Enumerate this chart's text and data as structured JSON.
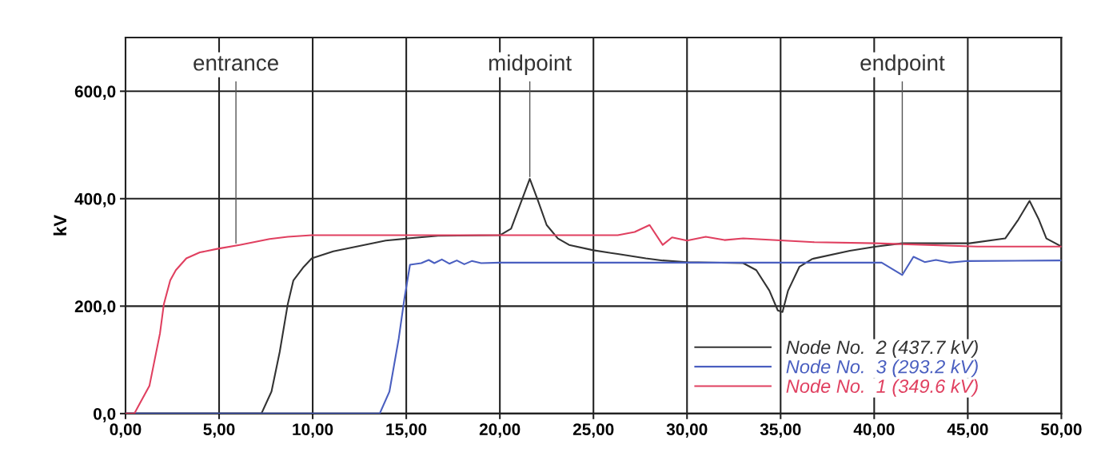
{
  "chart_data": {
    "type": "line",
    "ylabel": "kV",
    "xlim": [
      0,
      50
    ],
    "ylim": [
      0,
      700
    ],
    "xticks": [
      {
        "value": 0,
        "label": "0,00"
      },
      {
        "value": 5,
        "label": "5,00"
      },
      {
        "value": 10,
        "label": "10,00"
      },
      {
        "value": 15,
        "label": "15,00"
      },
      {
        "value": 20,
        "label": "20,00"
      },
      {
        "value": 25,
        "label": "25,00"
      },
      {
        "value": 30,
        "label": "30,00"
      },
      {
        "value": 35,
        "label": "35,00"
      },
      {
        "value": 40,
        "label": "40,00"
      },
      {
        "value": 45,
        "label": "45,00"
      },
      {
        "value": 50,
        "label": "50,00"
      }
    ],
    "yticks": [
      {
        "value": 0,
        "label": "0,0"
      },
      {
        "value": 200,
        "label": "200,0"
      },
      {
        "value": 400,
        "label": "400,0"
      },
      {
        "value": 600,
        "label": "600,0"
      }
    ],
    "grid": true,
    "legend": "bottom right",
    "marker": "none",
    "line_style": "solid",
    "series": [
      {
        "name": "Node No.  2 (437.7 kV)",
        "color": "#333333",
        "x": [
          0,
          7.26,
          7.8,
          8.24,
          8.67,
          8.97,
          9.52,
          9.95,
          11.1,
          12.5,
          13.9,
          15.1,
          16.7,
          20,
          20.6,
          21.2,
          21.6,
          22.0,
          22.5,
          23.1,
          23.7,
          25.0,
          26.3,
          27.8,
          28.7,
          30.0,
          33.0,
          33.7,
          34.4,
          34.85,
          35.1,
          35.4,
          36.0,
          36.7,
          38.7,
          40.1,
          41.5,
          45.1,
          47.0,
          47.7,
          48.3,
          48.8,
          49.2,
          50.0
        ],
        "values": [
          0,
          0,
          41,
          115,
          204,
          248,
          273,
          289,
          302,
          312,
          322,
          326,
          331,
          332,
          344,
          400,
          437,
          400,
          351,
          326,
          314,
          304,
          297,
          289,
          285,
          282,
          280,
          267,
          229,
          192,
          189,
          229,
          273,
          288,
          303,
          311,
          317,
          317,
          326,
          361,
          396,
          361,
          326,
          311
        ]
      },
      {
        "name": "Node No.  3 (293.2 kV)",
        "color": "#4a5fc0",
        "x": [
          0,
          13.58,
          14.1,
          14.6,
          14.9,
          15.2,
          15.8,
          16.2,
          16.5,
          16.9,
          17.3,
          17.7,
          18.1,
          18.5,
          19.0,
          20.0,
          40.4,
          41.5,
          42.1,
          42.7,
          43.3,
          44.0,
          45.0,
          50.0
        ],
        "values": [
          0,
          0,
          41,
          140,
          214,
          277,
          280,
          286,
          280,
          287,
          279,
          285,
          278,
          284,
          280,
          281,
          281,
          258,
          292,
          282,
          286,
          281,
          284,
          285
        ]
      },
      {
        "name": "Node No.  1 (349.6 kV)",
        "color": "#e04060",
        "x": [
          0,
          0.47,
          1.28,
          1.84,
          2.05,
          2.39,
          2.69,
          3.25,
          3.97,
          4.95,
          6.1,
          7.7,
          8.67,
          9.95,
          26.3,
          27.2,
          28.0,
          28.7,
          29.2,
          30.0,
          31.0,
          32.0,
          33.0,
          36.8,
          40.1,
          45.5,
          50.0
        ],
        "values": [
          0,
          0,
          52,
          149,
          204,
          248,
          267,
          289,
          300,
          307,
          314,
          325,
          329,
          332,
          332,
          338,
          351,
          314,
          328,
          322,
          329,
          323,
          326,
          319,
          317,
          311,
          311
        ]
      }
    ],
    "annotations": [
      {
        "text": "entrance",
        "x": 5.9,
        "y": 313
      },
      {
        "text": "midpoint",
        "x": 21.6,
        "y": 437
      },
      {
        "text": "endpoint",
        "x": 41.5,
        "y": 258
      }
    ]
  }
}
